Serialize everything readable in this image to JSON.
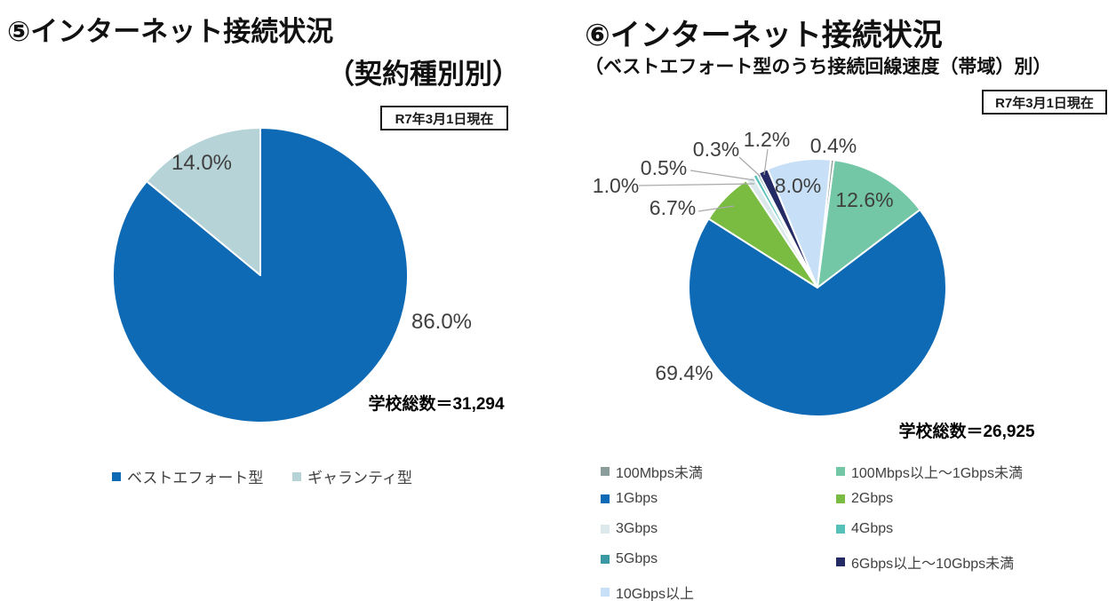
{
  "chart_data": [
    {
      "id": "5",
      "type": "pie",
      "title": "⑤インターネット接続状況",
      "subtitle": "（契約種別別）",
      "date_note": "R7年3月1日現在",
      "total_note": "学校総数＝31,294",
      "categories": [
        "ベストエフォート型",
        "ギャランティ型"
      ],
      "values": [
        86.0,
        14.0
      ],
      "colors": [
        "#0E6AB4",
        "#B6D3D8"
      ],
      "slice_labels": [
        "86.0%",
        "14.0%"
      ],
      "start_angle": 0,
      "direction": "clockwise",
      "legend_position": "bottom",
      "label_color": "#3F3F3F",
      "slice_border_color": "#FFFFFF"
    },
    {
      "id": "6",
      "type": "pie",
      "title": "⑥インターネット接続状況",
      "subtitle": "（ベストエフォート型のうち接続回線速度（帯域）別）",
      "date_note": "R7年3月1日現在",
      "total_note": "学校総数＝26,925",
      "categories": [
        "100Mbps未満",
        "100Mbps以上～1Gbps未満",
        "1Gbps",
        "2Gbps",
        "3Gbps",
        "4Gbps",
        "5Gbps",
        "6Gbps以上～10Gbps未満",
        "10Gbps以上"
      ],
      "values": [
        0.4,
        12.6,
        69.4,
        6.7,
        1.0,
        0.5,
        0.3,
        1.2,
        8.0
      ],
      "colors": [
        "#8A9D9B",
        "#73C7A7",
        "#0E6AB4",
        "#79BC41",
        "#DBE8EC",
        "#55C1B9",
        "#3B99A4",
        "#242A63",
        "#C8E0F7"
      ],
      "slice_labels": [
        "0.4%",
        "12.6%",
        "69.4%",
        "6.7%",
        "1.0%",
        "0.5%",
        "0.3%",
        "1.2%",
        "8.0%"
      ],
      "start_angle": 6,
      "direction": "clockwise",
      "legend_position": "bottom",
      "label_color": "#3F3F3F",
      "slice_border_color": "#FFFFFF",
      "leader_line_color": "#A9A9A9"
    }
  ]
}
